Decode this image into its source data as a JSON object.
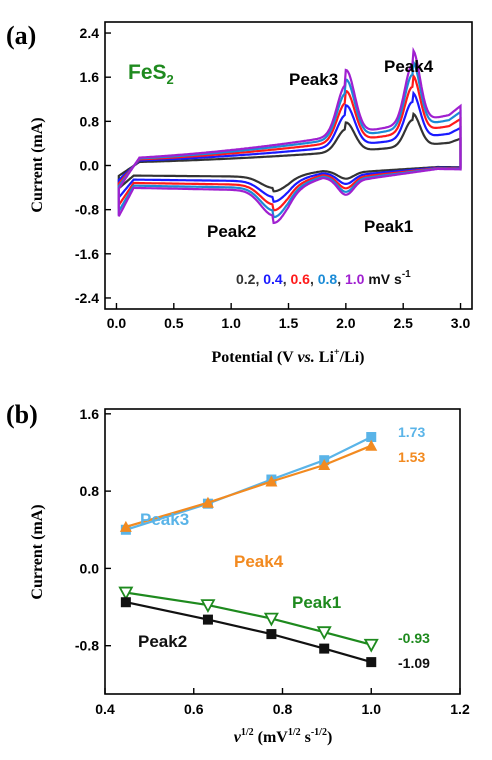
{
  "panels": [
    {
      "panel_label": "(a)",
      "material": "FeS",
      "material_sub": "2",
      "xlabel_main": "Potential (V ",
      "xlabel_vs": "vs.",
      "xlabel_li": " Li",
      "xlabel_sup": "+",
      "xlabel_end": "/Li)",
      "ylabel": "Current (mA)",
      "scan_rates": [
        "0.2",
        "0.4",
        "0.6",
        "0.8",
        "1.0"
      ],
      "scan_rate_colors": [
        "#333333",
        "#1a1aff",
        "#ff1a1a",
        "#1a8bd6",
        "#a020d0"
      ],
      "scan_unit": "mV s",
      "scan_unit_sup": "-1",
      "peak_labels": [
        "Peak1",
        "Peak2",
        "Peak3",
        "Peak4"
      ]
    },
    {
      "panel_label": "(b)",
      "xlabel_nu": "ν",
      "xlabel_sup": "1/2",
      "xlabel_paren": " (mV",
      "xlabel_sup2": "1/2",
      "xlabel_s": " s",
      "xlabel_sup3": "-1/2",
      "xlabel_close": ")",
      "ylabel": "Current (mA)"
    }
  ],
  "chart_data": [
    {
      "type": "line",
      "xlim": [
        -0.1,
        3.1
      ],
      "ylim": [
        -2.6,
        2.6
      ],
      "xticks": [
        "0.0",
        "0.5",
        "1.0",
        "1.5",
        "2.0",
        "2.5",
        "3.0"
      ],
      "xtick_values": [
        0,
        0.5,
        1.0,
        1.5,
        2.0,
        2.5,
        3.0
      ],
      "yticks": [
        "2.4",
        "1.6",
        "0.8",
        "0.0",
        "-0.8",
        "-1.6",
        "-2.4"
      ],
      "ytick_values": [
        2.4,
        1.6,
        0.8,
        0.0,
        -0.8,
        -1.6,
        -2.4
      ],
      "series": [
        {
          "name": "0.2",
          "color": "#333333",
          "scale": 0.45
        },
        {
          "name": "0.4",
          "color": "#1a1aff",
          "scale": 0.63
        },
        {
          "name": "0.6",
          "color": "#ff1a1a",
          "scale": 0.78
        },
        {
          "name": "0.8",
          "color": "#1a8bd6",
          "scale": 0.9
        },
        {
          "name": "1.0",
          "color": "#a020d0",
          "scale": 1.0
        }
      ],
      "peaks": {
        "Peak1": {
          "x": 2.0,
          "y": -0.62
        },
        "Peak2": {
          "x": 1.37,
          "y": -0.95
        },
        "Peak3": {
          "x": 2.0,
          "y": 1.26
        },
        "Peak4": {
          "x": 2.58,
          "y": 1.38
        }
      }
    },
    {
      "type": "line",
      "xlim": [
        0.4,
        1.2
      ],
      "ylim": [
        -1.3,
        1.65
      ],
      "xticks": [
        "0.4",
        "0.6",
        "0.8",
        "1.0",
        "1.2"
      ],
      "xtick_values": [
        0.4,
        0.6,
        0.8,
        1.0,
        1.2
      ],
      "yticks": [
        "1.6",
        "0.8",
        "0.0",
        "-0.8"
      ],
      "ytick_values": [
        1.6,
        0.8,
        0.0,
        -0.8
      ],
      "x": [
        0.447,
        0.632,
        0.775,
        0.894,
        1.0
      ],
      "series": [
        {
          "name": "Peak3",
          "color": "#5ab4e8",
          "marker": "square",
          "values": [
            0.4,
            0.67,
            0.92,
            1.12,
            1.36
          ],
          "end_label": "1.73"
        },
        {
          "name": "Peak4",
          "color": "#f28a20",
          "marker": "triangle-up",
          "values": [
            0.43,
            0.68,
            0.9,
            1.07,
            1.27
          ],
          "end_label": "1.53"
        },
        {
          "name": "Peak1",
          "color": "#1e8a1e",
          "marker": "triangle-down",
          "values": [
            -0.25,
            -0.38,
            -0.52,
            -0.66,
            -0.79
          ],
          "end_label": "-0.93"
        },
        {
          "name": "Peak2",
          "color": "#111111",
          "marker": "square",
          "values": [
            -0.35,
            -0.53,
            -0.68,
            -0.83,
            -0.97
          ],
          "end_label": "-1.09"
        }
      ]
    }
  ]
}
